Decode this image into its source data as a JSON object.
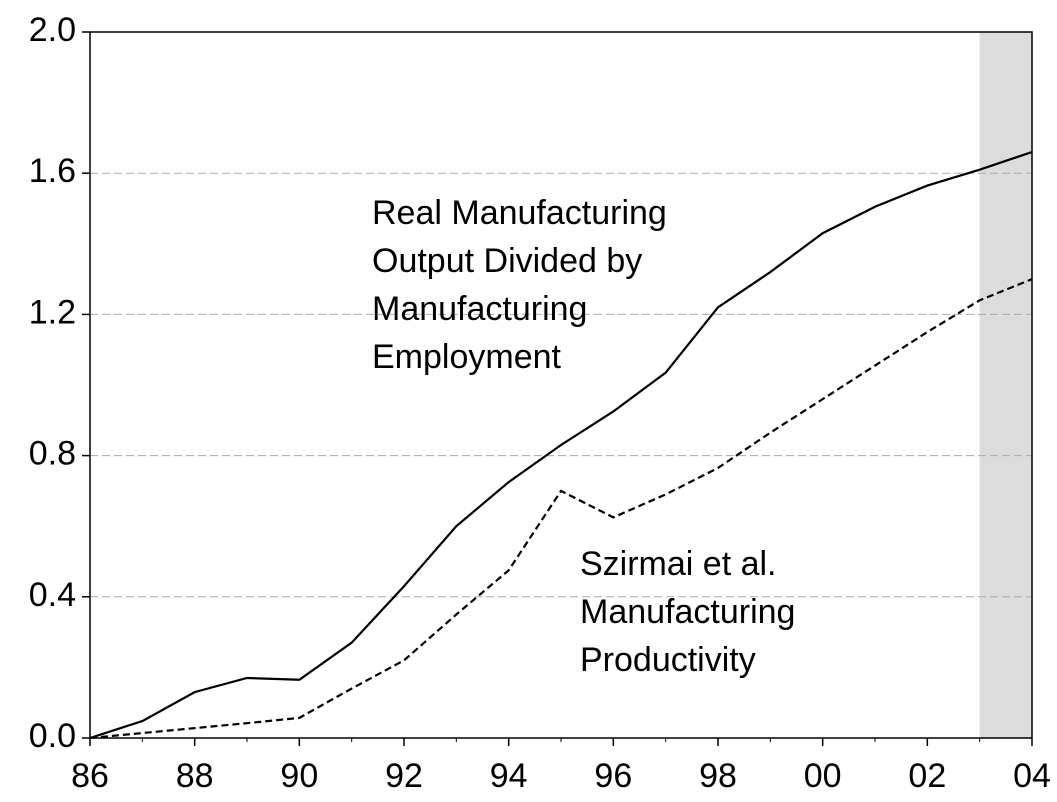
{
  "chart_data": {
    "type": "line",
    "x": [
      1986,
      1987,
      1988,
      1989,
      1990,
      1991,
      1992,
      1993,
      1994,
      1995,
      1996,
      1997,
      1998,
      1999,
      2000,
      2001,
      2002,
      2003,
      2004
    ],
    "series": [
      {
        "color": "#000000",
        "dash": "solid",
        "values": [
          0.0,
          0.048,
          0.13,
          0.17,
          0.165,
          0.27,
          0.43,
          0.6,
          0.725,
          0.83,
          0.925,
          1.035,
          1.22,
          1.32,
          1.43,
          1.505,
          1.565,
          1.61,
          1.66
        ]
      },
      {
        "color": "#000000",
        "dash": "dashed",
        "values": [
          0.0,
          0.014,
          0.028,
          0.042,
          0.057,
          0.14,
          0.22,
          0.35,
          0.475,
          0.7,
          0.625,
          0.69,
          0.765,
          0.865,
          0.96,
          1.055,
          1.15,
          1.24,
          1.3
        ]
      }
    ],
    "annotations": [
      [
        "Real Manufacturing",
        "Output Divided by",
        "Manufacturing",
        "Employment"
      ],
      [
        "Szirmai et al.",
        "Manufacturing",
        "Productivity"
      ]
    ],
    "shade": {
      "from": 2003,
      "to": 2004,
      "color": "#dcdcdc"
    },
    "xlim": [
      1986,
      2004
    ],
    "xticks": [
      {
        "value": 1986,
        "label": "86"
      },
      {
        "value": 1988,
        "label": "88"
      },
      {
        "value": 1990,
        "label": "90"
      },
      {
        "value": 1992,
        "label": "92"
      },
      {
        "value": 1994,
        "label": "94"
      },
      {
        "value": 1996,
        "label": "96"
      },
      {
        "value": 1998,
        "label": "98"
      },
      {
        "value": 2000,
        "label": "00"
      },
      {
        "value": 2002,
        "label": "02"
      },
      {
        "value": 2004,
        "label": "04"
      }
    ],
    "ylim": [
      0,
      2
    ],
    "yticks": [
      {
        "value": 0,
        "label": "0.0"
      },
      0.4,
      0.8,
      1.2,
      1.6,
      {
        "value": 2,
        "label": "2.0"
      }
    ],
    "grid": true
  }
}
